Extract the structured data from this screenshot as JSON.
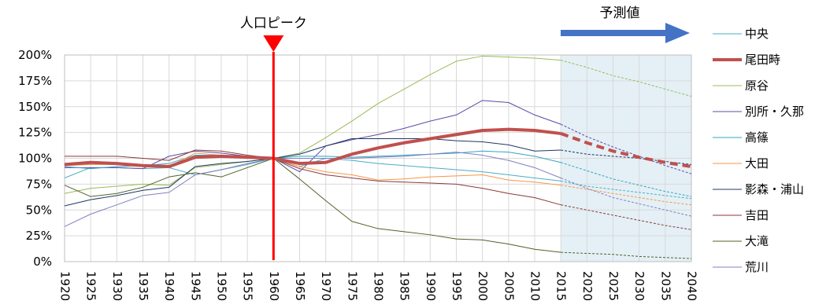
{
  "chart_data": {
    "type": "line",
    "x": [
      1920,
      1925,
      1930,
      1935,
      1940,
      1945,
      1950,
      1955,
      1960,
      1965,
      1970,
      1975,
      1980,
      1985,
      1990,
      1995,
      2000,
      2005,
      2010,
      2015,
      2020,
      2025,
      2030,
      2035,
      2040
    ],
    "x_tick_labels": [
      "1920",
      "1925",
      "1930",
      "1935",
      "1940",
      "1945",
      "1950",
      "1955",
      "1960",
      "1965",
      "1970",
      "1975",
      "1980",
      "1985",
      "1990",
      "1995",
      "2000",
      "2005",
      "2010",
      "2015",
      "2020",
      "2025",
      "2030",
      "2035",
      "2040"
    ],
    "ylim": [
      0,
      200
    ],
    "y_tick_labels": [
      "0%",
      "25%",
      "50%",
      "75%",
      "100%",
      "125%",
      "150%",
      "175%",
      "200%"
    ],
    "y_ticks": [
      0,
      25,
      50,
      75,
      100,
      125,
      150,
      175,
      200
    ],
    "grid": true,
    "legend_position": "right",
    "projection_start": 2015,
    "projection_shade_color": "#e4f0f6",
    "annotations": {
      "peak_label": "人口ピーク",
      "peak_year": 1960,
      "peak_color": "#ff0000",
      "forecast_label": "予測値",
      "forecast_arrow_color": "#4472c4"
    },
    "series": [
      {
        "name": "中央",
        "color": "#4bacc6",
        "width": 1,
        "values": [
          81,
          91,
          91,
          90,
          91,
          84,
          89,
          94,
          100,
          92,
          100,
          98,
          95,
          93,
          91,
          89,
          87,
          84,
          81,
          78,
          73,
          70,
          67,
          64,
          61
        ]
      },
      {
        "name": "尾田畤",
        "color": "#c0504d",
        "width": 4,
        "highlight": true,
        "values": [
          94,
          96,
          95,
          93,
          92,
          101,
          102,
          101,
          100,
          95,
          96,
          104,
          110,
          115,
          119,
          123,
          127,
          128,
          127,
          124,
          115,
          107,
          101,
          96,
          92
        ]
      },
      {
        "name": "原谷",
        "color": "#9bbb59",
        "width": 1,
        "values": [
          66,
          71,
          73,
          75,
          74,
          91,
          94,
          97,
          100,
          105,
          120,
          136,
          153,
          167,
          181,
          194,
          199,
          198,
          197,
          195,
          188,
          180,
          174,
          167,
          160
        ]
      },
      {
        "name": "別所・久那",
        "color": "#5b4aa8",
        "width": 1,
        "values": [
          91,
          91,
          91,
          90,
          102,
          107,
          105,
          102,
          100,
          87,
          112,
          118,
          123,
          129,
          136,
          142,
          156,
          154,
          142,
          133,
          121,
          111,
          102,
          93,
          85
        ]
      },
      {
        "name": "高篠",
        "color": "#31a5c2",
        "width": 1,
        "values": [
          92,
          90,
          92,
          93,
          95,
          103,
          103,
          101,
          100,
          102,
          102,
          101,
          102,
          103,
          104,
          105,
          107,
          106,
          102,
          96,
          88,
          80,
          74,
          68,
          63
        ]
      },
      {
        "name": "大田",
        "color": "#f79646",
        "width": 1,
        "values": [
          93,
          94,
          94,
          92,
          92,
          105,
          103,
          101,
          100,
          92,
          87,
          84,
          79,
          80,
          82,
          83,
          84,
          79,
          77,
          74,
          70,
          66,
          62,
          58,
          55
        ]
      },
      {
        "name": "影森・浦山",
        "color": "#1f3864",
        "width": 1,
        "values": [
          54,
          60,
          64,
          69,
          72,
          92,
          95,
          97,
          100,
          104,
          112,
          119,
          119,
          119,
          119,
          117,
          116,
          113,
          107,
          108,
          104,
          102,
          100,
          97,
          94
        ]
      },
      {
        "name": "吉田",
        "color": "#8b3a3a",
        "width": 1,
        "values": [
          102,
          102,
          102,
          100,
          98,
          108,
          107,
          103,
          100,
          90,
          84,
          81,
          78,
          77,
          76,
          75,
          71,
          66,
          62,
          55,
          50,
          45,
          40,
          35,
          31
        ]
      },
      {
        "name": "大滝",
        "color": "#4f6228",
        "width": 1,
        "values": [
          74,
          63,
          66,
          72,
          82,
          86,
          82,
          91,
          100,
          80,
          59,
          39,
          32,
          29,
          26,
          22,
          21,
          17,
          12,
          9,
          8,
          7,
          5,
          4,
          3
        ]
      },
      {
        "name": "荒川",
        "color": "#8080c0",
        "width": 1,
        "values": [
          34,
          46,
          55,
          64,
          67,
          84,
          89,
          95,
          100,
          100,
          100,
          100,
          101,
          102,
          104,
          106,
          103,
          98,
          91,
          81,
          71,
          62,
          56,
          50,
          44
        ]
      }
    ]
  }
}
